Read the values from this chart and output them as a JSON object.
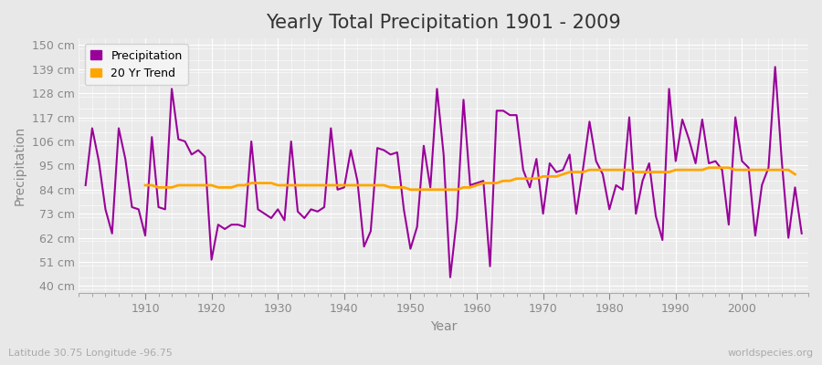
{
  "title": "Yearly Total Precipitation 1901 - 2009",
  "xlabel": "Year",
  "ylabel": "Precipitation",
  "lat_lon_label": "Latitude 30.75 Longitude -96.75",
  "watermark": "worldspecies.org",
  "years": [
    1901,
    1902,
    1903,
    1904,
    1905,
    1906,
    1907,
    1908,
    1909,
    1910,
    1911,
    1912,
    1913,
    1914,
    1915,
    1916,
    1917,
    1918,
    1919,
    1920,
    1921,
    1922,
    1923,
    1924,
    1925,
    1926,
    1927,
    1928,
    1929,
    1930,
    1931,
    1932,
    1933,
    1934,
    1935,
    1936,
    1937,
    1938,
    1939,
    1940,
    1941,
    1942,
    1943,
    1944,
    1945,
    1946,
    1947,
    1948,
    1949,
    1950,
    1951,
    1952,
    1953,
    1954,
    1955,
    1956,
    1957,
    1958,
    1959,
    1960,
    1961,
    1962,
    1963,
    1964,
    1965,
    1966,
    1967,
    1968,
    1969,
    1970,
    1971,
    1972,
    1973,
    1974,
    1975,
    1976,
    1977,
    1978,
    1979,
    1980,
    1981,
    1982,
    1983,
    1984,
    1985,
    1986,
    1987,
    1988,
    1989,
    1990,
    1991,
    1992,
    1993,
    1994,
    1995,
    1996,
    1997,
    1998,
    1999,
    2000,
    2001,
    2002,
    2003,
    2004,
    2005,
    2006,
    2007,
    2008,
    2009
  ],
  "precipitation": [
    86,
    112,
    97,
    75,
    64,
    112,
    98,
    76,
    75,
    63,
    108,
    76,
    75,
    130,
    107,
    106,
    100,
    102,
    99,
    52,
    68,
    66,
    68,
    68,
    67,
    106,
    75,
    73,
    71,
    75,
    70,
    106,
    74,
    71,
    75,
    74,
    76,
    112,
    84,
    85,
    102,
    88,
    58,
    65,
    103,
    102,
    100,
    101,
    75,
    57,
    67,
    104,
    85,
    130,
    100,
    44,
    71,
    125,
    86,
    87,
    88,
    49,
    120,
    120,
    118,
    118,
    93,
    85,
    98,
    73,
    96,
    92,
    93,
    100,
    73,
    93,
    115,
    97,
    91,
    75,
    86,
    84,
    117,
    73,
    88,
    96,
    72,
    61,
    130,
    97,
    116,
    107,
    96,
    116,
    96,
    97,
    93,
    68,
    117,
    97,
    94,
    63,
    86,
    94,
    140,
    97,
    62,
    85,
    64
  ],
  "trend": [
    null,
    null,
    null,
    null,
    null,
    null,
    null,
    null,
    null,
    86,
    86,
    85,
    85,
    85,
    86,
    86,
    86,
    86,
    86,
    86,
    85,
    85,
    85,
    86,
    86,
    87,
    87,
    87,
    87,
    86,
    86,
    86,
    86,
    86,
    86,
    86,
    86,
    86,
    86,
    86,
    86,
    86,
    86,
    86,
    86,
    86,
    85,
    85,
    85,
    84,
    84,
    84,
    84,
    84,
    84,
    84,
    84,
    85,
    85,
    86,
    87,
    87,
    87,
    88,
    88,
    89,
    89,
    89,
    89,
    90,
    90,
    90,
    91,
    92,
    92,
    92,
    93,
    93,
    93,
    93,
    93,
    93,
    93,
    92,
    92,
    92,
    92,
    92,
    92,
    93,
    93,
    93,
    93,
    93,
    94,
    94,
    94,
    94,
    93,
    93,
    93,
    93,
    93,
    93,
    93,
    93,
    93,
    91,
    null
  ],
  "precip_color": "#990099",
  "trend_color": "#FFA500",
  "fig_bg_color": "#E8E8E8",
  "plot_bg_color": "#EAEAEA",
  "grid_color": "#FFFFFF",
  "ytick_labels": [
    "40 cm",
    "51 cm",
    "62 cm",
    "73 cm",
    "84 cm",
    "95 cm",
    "106 cm",
    "117 cm",
    "128 cm",
    "139 cm",
    "150 cm"
  ],
  "ytick_values": [
    40,
    51,
    62,
    73,
    84,
    95,
    106,
    117,
    128,
    139,
    150
  ],
  "ylim": [
    37,
    153
  ],
  "xlim": [
    1900,
    2010
  ],
  "xtick_values": [
    1910,
    1920,
    1930,
    1940,
    1950,
    1960,
    1970,
    1980,
    1990,
    2000
  ],
  "title_fontsize": 15,
  "axis_label_fontsize": 10,
  "tick_fontsize": 9,
  "legend_fontsize": 9,
  "linewidth_precip": 1.5,
  "linewidth_trend": 2.0,
  "tick_color": "#888888",
  "label_color": "#888888",
  "title_color": "#333333"
}
